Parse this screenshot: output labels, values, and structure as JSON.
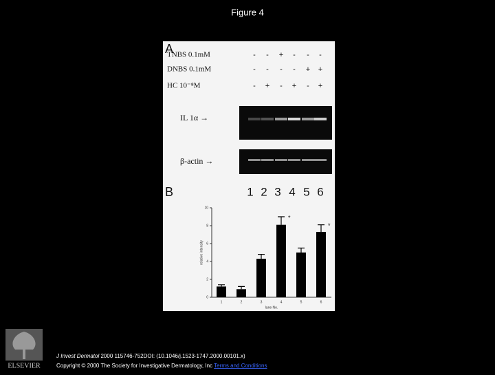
{
  "title": "Figure 4",
  "figure": {
    "panel_a": "A",
    "treatments": [
      {
        "label": "TNBS 0.1mM",
        "signs": [
          "-",
          "-",
          "+",
          "-",
          "-",
          "-"
        ]
      },
      {
        "label": "DNBS 0.1mM",
        "signs": [
          "-",
          "-",
          "-",
          "-",
          "+",
          "+"
        ]
      },
      {
        "label": "HC 10⁻⁸M",
        "signs": [
          "-",
          "+",
          "-",
          "+",
          "-",
          "+"
        ]
      }
    ],
    "gels": [
      "IL 1α →",
      "β-actin →"
    ],
    "panel_b": "B",
    "lanes": [
      "1",
      "2",
      "3",
      "4",
      "5",
      "6"
    ]
  },
  "chart_data": {
    "type": "bar",
    "categories": [
      "1",
      "2",
      "3",
      "4",
      "5",
      "6"
    ],
    "values": [
      1.2,
      0.9,
      4.3,
      8.1,
      5.0,
      7.3
    ],
    "errors": [
      0.2,
      0.3,
      0.5,
      0.9,
      0.5,
      0.8
    ],
    "color": "#000000",
    "ylim": [
      0,
      10
    ],
    "yticks": [
      0,
      2,
      4,
      6,
      8,
      10
    ],
    "ylabel": "relative intensity",
    "xlabel": "lane No.",
    "annotations": [
      {
        "text": "*",
        "category": "4"
      },
      {
        "text": "*",
        "category": "6"
      }
    ]
  },
  "citation": {
    "journal": "J Invest Dermatol",
    "reference": "2000 115746-752DOI: (10.1046/j.1523-1747.2000.00101.x)",
    "copyright": "Copyright © 2000 The Society for Investigative Dermatology, Inc",
    "link": "Terms and Conditions"
  },
  "logo": "ELSEVIER"
}
